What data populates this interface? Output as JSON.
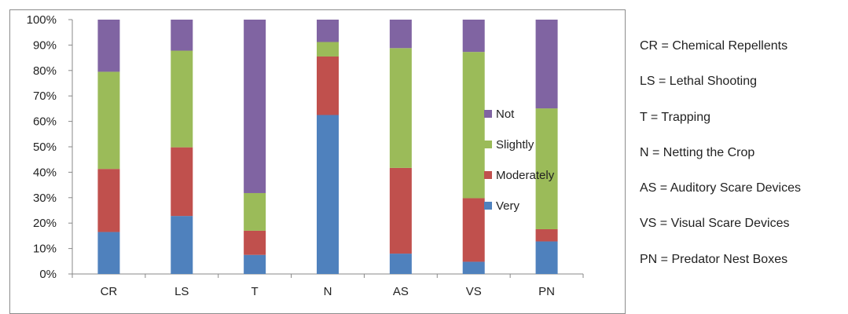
{
  "chart_data": {
    "type": "stacked-bar-100",
    "categories": [
      "CR",
      "LS",
      "T",
      "N",
      "AS",
      "VS",
      "PN"
    ],
    "series": [
      {
        "name": "Very",
        "color": "#4F81BD",
        "values": [
          16.5,
          22.8,
          7.5,
          62.5,
          8.0,
          4.8,
          12.8
        ]
      },
      {
        "name": "Moderately",
        "color": "#C0504D",
        "values": [
          24.8,
          27.0,
          9.5,
          23.0,
          33.7,
          25.0,
          4.8
        ]
      },
      {
        "name": "Slightly",
        "color": "#9BBB59",
        "values": [
          38.2,
          38.0,
          14.8,
          5.7,
          47.1,
          57.5,
          47.5
        ]
      },
      {
        "name": "Not",
        "color": "#8064A2",
        "values": [
          20.5,
          12.2,
          68.2,
          8.8,
          11.2,
          12.7,
          34.9
        ]
      }
    ],
    "yticks": [
      "0%",
      "10%",
      "20%",
      "30%",
      "40%",
      "50%",
      "60%",
      "70%",
      "80%",
      "90%",
      "100%"
    ],
    "ylim": [
      0,
      100
    ],
    "legend_position": "right",
    "grid": false
  },
  "abbreviations": [
    "CR = Chemical Repellents",
    "LS = Lethal Shooting",
    "T = Trapping",
    "N = Netting the Crop",
    "AS = Auditory Scare Devices",
    "VS = Visual Scare Devices",
    "PN = Predator Nest Boxes"
  ]
}
